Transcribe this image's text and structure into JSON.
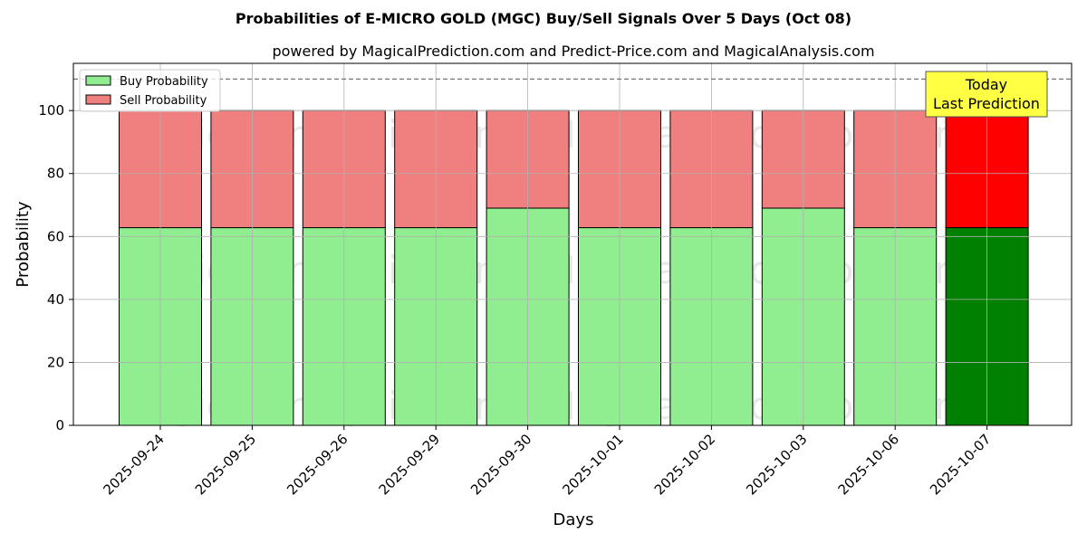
{
  "title": "Probabilities of E-MICRO GOLD (MGC) Buy/Sell Signals Over 5 Days (Oct 08)",
  "subtitle": "powered by MagicalPrediction.com and Predict-Price.com and MagicalAnalysis.com",
  "annotation": [
    "Today",
    "Last Prediction"
  ],
  "watermarks": [
    "MagicalAnalysis.com",
    "MagicalPrediction.com"
  ],
  "colors": {
    "buy": "#90ee90",
    "sell": "#f08080",
    "buy_today": "#008000",
    "sell_today": "#ff0000",
    "annotation_bg": "#ffff44"
  },
  "chart_data": {
    "type": "bar",
    "stacked": true,
    "title": "Probabilities of E-MICRO GOLD (MGC) Buy/Sell Signals Over 5 Days (Oct 08)",
    "xlabel": "Days",
    "ylabel": "Probability",
    "ylim": [
      0,
      115
    ],
    "yticks": [
      0,
      20,
      40,
      60,
      80,
      100
    ],
    "reference_line": 110,
    "grid": true,
    "legend_position": "top-left",
    "categories": [
      "2025-09-24",
      "2025-09-25",
      "2025-09-26",
      "2025-09-29",
      "2025-09-30",
      "2025-10-01",
      "2025-10-02",
      "2025-10-03",
      "2025-10-06",
      "2025-10-07"
    ],
    "series": [
      {
        "name": "Buy Probability",
        "values": [
          62.8,
          62.8,
          62.8,
          62.8,
          69.0,
          62.8,
          62.8,
          69.0,
          62.8,
          62.8
        ]
      },
      {
        "name": "Sell Probability",
        "values": [
          37.2,
          37.2,
          37.2,
          37.2,
          31.0,
          37.2,
          37.2,
          31.0,
          37.2,
          37.2
        ]
      }
    ]
  }
}
